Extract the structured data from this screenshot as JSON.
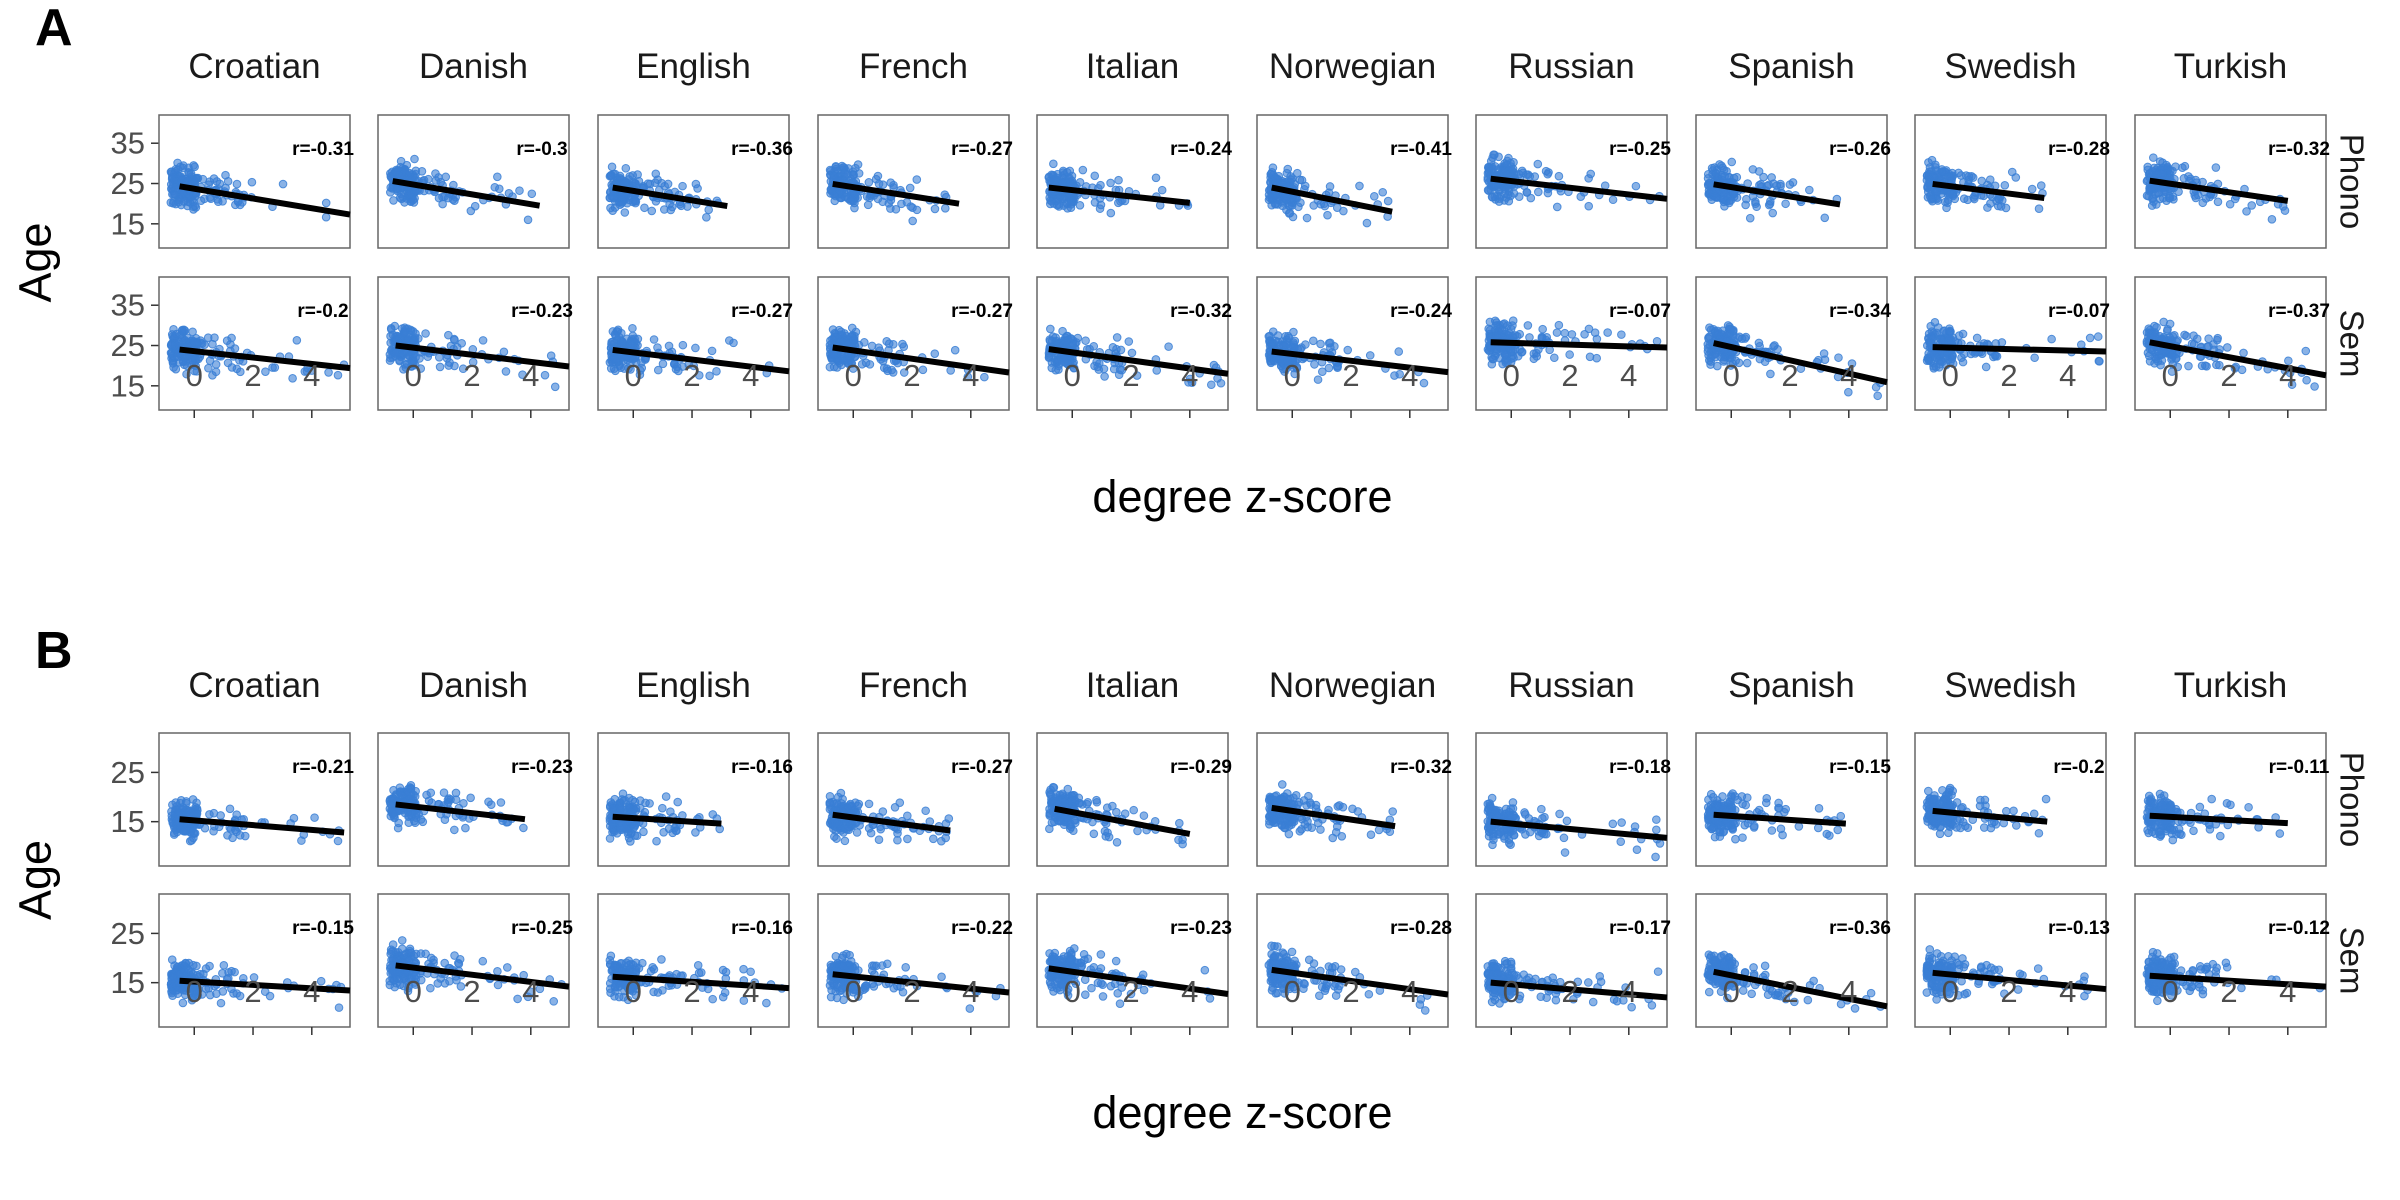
{
  "colors": {
    "points": "#3a7fd5",
    "fit_line": "#000000",
    "panel_border": "#666666",
    "tick": "#333333"
  },
  "chart_data": [
    {
      "tag": "A",
      "type": "scatter",
      "xlabel": "degree z-score",
      "ylabel": "Age",
      "x_ticks": [
        0,
        2,
        4
      ],
      "xlim": [
        -1.2,
        5.3
      ],
      "y_ticks": [
        15,
        25,
        35
      ],
      "ylim": [
        9,
        42
      ],
      "columns": [
        "Croatian",
        "Danish",
        "English",
        "French",
        "Italian",
        "Norwegian",
        "Russian",
        "Spanish",
        "Swedish",
        "Turkish"
      ],
      "rows": [
        {
          "strip": "Phono",
          "panels": [
            {
              "r": "r=-0.31",
              "fit": [
                [
                  -0.5,
                  24.3
                ],
                [
                  5.3,
                  17.3
                ]
              ]
            },
            {
              "r": "r=-0.3",
              "fit": [
                [
                  -0.7,
                  25.6
                ],
                [
                  4.3,
                  19.5
                ]
              ]
            },
            {
              "r": "r=-0.36",
              "fit": [
                [
                  -0.7,
                  24.0
                ],
                [
                  3.2,
                  19.4
                ]
              ]
            },
            {
              "r": "r=-0.27",
              "fit": [
                [
                  -0.7,
                  24.9
                ],
                [
                  3.6,
                  20.0
                ]
              ]
            },
            {
              "r": "r=-0.24",
              "fit": [
                [
                  -0.8,
                  24.0
                ],
                [
                  4.0,
                  20.2
                ]
              ]
            },
            {
              "r": "r=-0.41",
              "fit": [
                [
                  -0.7,
                  24.0
                ],
                [
                  3.4,
                  18.0
                ]
              ]
            },
            {
              "r": "r=-0.25",
              "fit": [
                [
                  -0.7,
                  26.2
                ],
                [
                  5.3,
                  21.2
                ]
              ]
            },
            {
              "r": "r=-0.26",
              "fit": [
                [
                  -0.6,
                  24.8
                ],
                [
                  3.7,
                  19.8
                ]
              ]
            },
            {
              "r": "r=-0.28",
              "fit": [
                [
                  -0.6,
                  24.9
                ],
                [
                  3.2,
                  21.4
                ]
              ]
            },
            {
              "r": "r=-0.32",
              "fit": [
                [
                  -0.7,
                  25.7
                ],
                [
                  4.0,
                  20.7
                ]
              ]
            }
          ]
        },
        {
          "strip": "Sem",
          "panels": [
            {
              "r": "r=-0.2",
              "fit": [
                [
                  -0.5,
                  24.0
                ],
                [
                  5.3,
                  19.4
                ]
              ]
            },
            {
              "r": "r=-0.23",
              "fit": [
                [
                  -0.6,
                  25.0
                ],
                [
                  5.3,
                  19.8
                ]
              ]
            },
            {
              "r": "r=-0.27",
              "fit": [
                [
                  -0.7,
                  23.9
                ],
                [
                  5.3,
                  18.6
                ]
              ]
            },
            {
              "r": "r=-0.27",
              "fit": [
                [
                  -0.7,
                  24.5
                ],
                [
                  5.3,
                  18.3
                ]
              ]
            },
            {
              "r": "r=-0.32",
              "fit": [
                [
                  -0.8,
                  24.1
                ],
                [
                  5.3,
                  18.0
                ]
              ]
            },
            {
              "r": "r=-0.24",
              "fit": [
                [
                  -0.7,
                  23.5
                ],
                [
                  5.3,
                  18.4
                ]
              ]
            },
            {
              "r": "r=-0.07",
              "fit": [
                [
                  -0.7,
                  25.8
                ],
                [
                  5.3,
                  24.5
                ]
              ]
            },
            {
              "r": "r=-0.34",
              "fit": [
                [
                  -0.6,
                  25.6
                ],
                [
                  5.3,
                  15.9
                ]
              ]
            },
            {
              "r": "r=-0.07",
              "fit": [
                [
                  -0.6,
                  24.6
                ],
                [
                  5.3,
                  23.5
                ]
              ]
            },
            {
              "r": "r=-0.37",
              "fit": [
                [
                  -0.7,
                  25.8
                ],
                [
                  5.3,
                  17.6
                ]
              ]
            }
          ]
        }
      ]
    },
    {
      "tag": "B",
      "type": "scatter",
      "xlabel": "degree z-score",
      "ylabel": "Age",
      "x_ticks": [
        0,
        2,
        4
      ],
      "xlim": [
        -1.2,
        5.3
      ],
      "y_ticks": [
        15,
        25
      ],
      "ylim": [
        6,
        33
      ],
      "columns": [
        "Croatian",
        "Danish",
        "English",
        "French",
        "Italian",
        "Norwegian",
        "Russian",
        "Spanish",
        "Swedish",
        "Turkish"
      ],
      "rows": [
        {
          "strip": "Phono",
          "panels": [
            {
              "r": "r=-0.21",
              "fit": [
                [
                  -0.5,
                  15.5
                ],
                [
                  5.1,
                  12.8
                ]
              ]
            },
            {
              "r": "r=-0.23",
              "fit": [
                [
                  -0.6,
                  18.5
                ],
                [
                  3.8,
                  15.5
                ]
              ]
            },
            {
              "r": "r=-0.16",
              "fit": [
                [
                  -0.7,
                  16.0
                ],
                [
                  3.0,
                  14.6
                ]
              ]
            },
            {
              "r": "r=-0.27",
              "fit": [
                [
                  -0.7,
                  16.4
                ],
                [
                  3.3,
                  13.2
                ]
              ]
            },
            {
              "r": "r=-0.29",
              "fit": [
                [
                  -0.6,
                  17.6
                ],
                [
                  4.0,
                  12.5
                ]
              ]
            },
            {
              "r": "r=-0.32",
              "fit": [
                [
                  -0.7,
                  17.8
                ],
                [
                  3.5,
                  14.1
                ]
              ]
            },
            {
              "r": "r=-0.18",
              "fit": [
                [
                  -0.7,
                  15.0
                ],
                [
                  5.3,
                  11.7
                ]
              ]
            },
            {
              "r": "r=-0.15",
              "fit": [
                [
                  -0.6,
                  16.4
                ],
                [
                  3.9,
                  14.6
                ]
              ]
            },
            {
              "r": "r=-0.2",
              "fit": [
                [
                  -0.6,
                  17.2
                ],
                [
                  3.3,
                  15.0
                ]
              ]
            },
            {
              "r": "r=-0.11",
              "fit": [
                [
                  -0.7,
                  16.2
                ],
                [
                  4.0,
                  14.7
                ]
              ]
            }
          ]
        },
        {
          "strip": "Sem",
          "panels": [
            {
              "r": "r=-0.15",
              "fit": [
                [
                  -0.5,
                  15.4
                ],
                [
                  5.3,
                  13.4
                ]
              ]
            },
            {
              "r": "r=-0.25",
              "fit": [
                [
                  -0.6,
                  18.5
                ],
                [
                  5.3,
                  14.2
                ]
              ]
            },
            {
              "r": "r=-0.16",
              "fit": [
                [
                  -0.7,
                  16.2
                ],
                [
                  5.3,
                  13.9
                ]
              ]
            },
            {
              "r": "r=-0.22",
              "fit": [
                [
                  -0.7,
                  16.7
                ],
                [
                  5.3,
                  13.0
                ]
              ]
            },
            {
              "r": "r=-0.23",
              "fit": [
                [
                  -0.8,
                  17.9
                ],
                [
                  5.3,
                  12.7
                ]
              ]
            },
            {
              "r": "r=-0.28",
              "fit": [
                [
                  -0.7,
                  17.6
                ],
                [
                  5.3,
                  12.6
                ]
              ]
            },
            {
              "r": "r=-0.17",
              "fit": [
                [
                  -0.7,
                  15.0
                ],
                [
                  5.3,
                  12.0
                ]
              ]
            },
            {
              "r": "r=-0.36",
              "fit": [
                [
                  -0.6,
                  17.2
                ],
                [
                  5.3,
                  10.2
                ]
              ]
            },
            {
              "r": "r=-0.13",
              "fit": [
                [
                  -0.6,
                  17.0
                ],
                [
                  5.3,
                  13.7
                ]
              ]
            },
            {
              "r": "r=-0.12",
              "fit": [
                [
                  -0.7,
                  16.4
                ],
                [
                  5.3,
                  14.2
                ]
              ]
            }
          ]
        }
      ]
    }
  ]
}
